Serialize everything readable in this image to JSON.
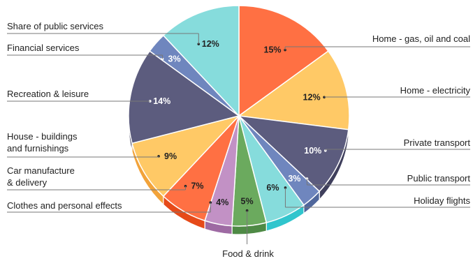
{
  "chart_data": {
    "type": "pie",
    "slices": [
      {
        "label": "Home - gas, oil and coal",
        "value": 15,
        "value_label": "15%",
        "color": "#FF7043",
        "side_color": "#E64A19",
        "text_color": "#222222"
      },
      {
        "label": "Home - electricity",
        "value": 12,
        "value_label": "12%",
        "color": "#FFC966",
        "side_color": "#E8A640",
        "text_color": "#222222"
      },
      {
        "label": "Private transport",
        "value": 10,
        "value_label": "10%",
        "color": "#5C5C7E",
        "side_color": "#3F3F5C",
        "text_color": "#FFFFFF"
      },
      {
        "label": "Public transport",
        "value": 3,
        "value_label": "3%",
        "color": "#6F86BE",
        "side_color": "#50679C",
        "text_color": "#FFFFFF"
      },
      {
        "label": "Holiday flights",
        "value": 6,
        "value_label": "6%",
        "color": "#86DCDC",
        "side_color": "#30C5CD",
        "text_color": "#222222"
      },
      {
        "label": "Food & drink",
        "value": 5,
        "value_label": "5%",
        "color": "#6BAA5E",
        "side_color": "#4E8A45",
        "text_color": "#222222"
      },
      {
        "label": "Clothes and personal effects",
        "value": 4,
        "value_label": "4%",
        "color": "#C291C5",
        "side_color": "#9E6AA3",
        "text_color": "#222222"
      },
      {
        "label": "Car manufacture\n& delivery",
        "value": 7,
        "value_label": "7%",
        "color": "#FF7043",
        "side_color": "#E64A19",
        "text_color": "#222222"
      },
      {
        "label": "House - buildings\nand furnishings",
        "value": 9,
        "value_label": "9%",
        "color": "#FFC966",
        "side_color": "#F2A33A",
        "text_color": "#222222"
      },
      {
        "label": "Recreation & leisure",
        "value": 14,
        "value_label": "14%",
        "color": "#5C5C7E",
        "side_color": "#3F3F5C",
        "text_color": "#FFFFFF"
      },
      {
        "label": "Financial services",
        "value": 3,
        "value_label": "3%",
        "color": "#6F86BE",
        "side_color": "#50679C",
        "text_color": "#FFFFFF"
      },
      {
        "label": "Share of public services",
        "value": 12,
        "value_label": "12%",
        "color": "#86DCDC",
        "side_color": "#5CC8C8",
        "text_color": "#222222"
      }
    ]
  }
}
